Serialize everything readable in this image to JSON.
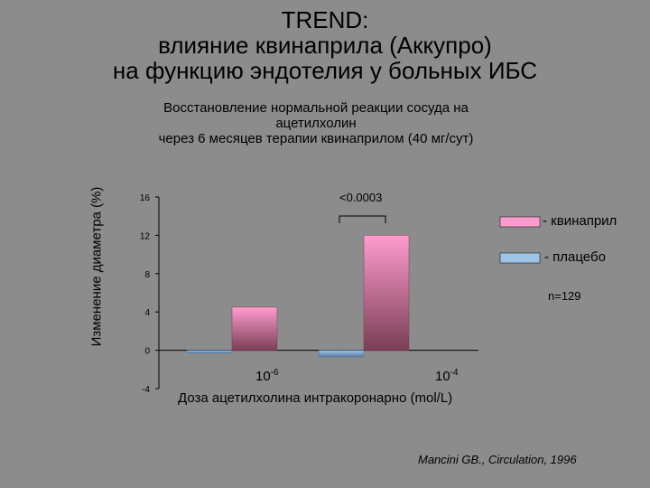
{
  "title": {
    "line1": "TREND:",
    "line2": "влияние квинаприла (Аккупро)",
    "line3": "на функцию эндотелия у больных ИБС"
  },
  "subtitle": {
    "line1": "Восстановление нормальной реакции сосуда на",
    "line2": "ацетилхолин",
    "line3": "через 6 месяцев терапии квинаприлом (40 мг/сут)"
  },
  "source": "Mancini GB., Circulation, 1996",
  "chart_data": {
    "type": "bar",
    "categories": [
      "10^-6",
      "10^-4"
    ],
    "x_ticks": [
      {
        "base": "10",
        "exp": "-6"
      },
      {
        "base": "10",
        "exp": "-4"
      }
    ],
    "series": [
      {
        "name": "- плацебо",
        "values": [
          -0.3,
          -0.7
        ],
        "color": "#9dc3e6"
      },
      {
        "name": "- квинаприл",
        "values": [
          4.5,
          12.0
        ],
        "color": "#ff9ccf"
      }
    ],
    "ylabel": "Изменение диаметра (%)",
    "xlabel": "Доза ацетилхолина интракоронарно (mol/L)",
    "ylim": [
      -4,
      16
    ],
    "yticks": [
      16,
      12,
      8,
      4,
      0,
      -4
    ],
    "annotation": "<0.0003",
    "n_label": "n=129",
    "legend_position": "right",
    "grid": false
  }
}
